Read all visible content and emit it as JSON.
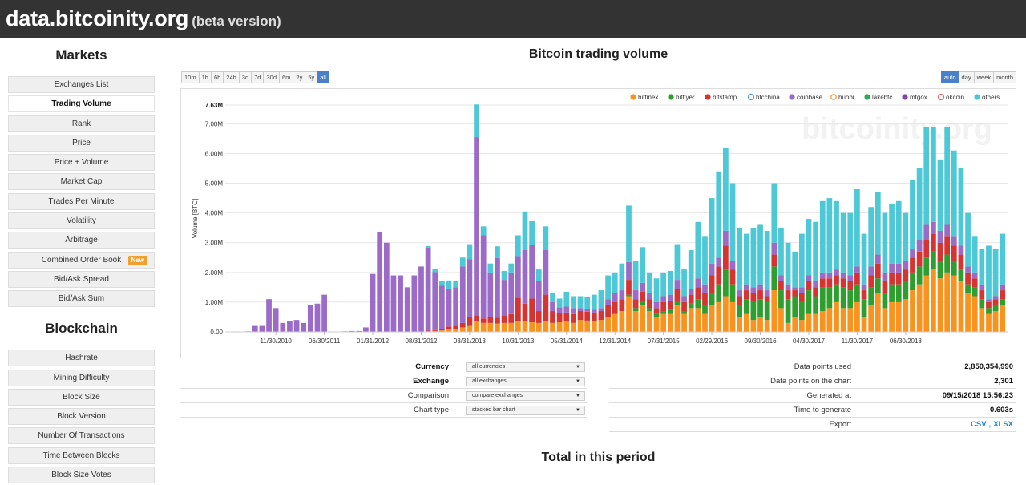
{
  "header": {
    "site": "data.bitcoinity.org",
    "beta": "(beta version)"
  },
  "sidebar": {
    "markets_title": "Markets",
    "markets": [
      {
        "label": "Exchanges List"
      },
      {
        "label": "Trading Volume",
        "active": true
      },
      {
        "label": "Rank"
      },
      {
        "label": "Price"
      },
      {
        "label": "Price + Volume"
      },
      {
        "label": "Market Cap"
      },
      {
        "label": "Trades Per Minute"
      },
      {
        "label": "Volatility"
      },
      {
        "label": "Arbitrage"
      },
      {
        "label": "Combined Order Book",
        "badge": "New"
      },
      {
        "label": "Bid/Ask Spread"
      },
      {
        "label": "Bid/Ask Sum"
      }
    ],
    "blockchain_title": "Blockchain",
    "blockchain": [
      {
        "label": "Hashrate"
      },
      {
        "label": "Mining Difficulty"
      },
      {
        "label": "Block Size"
      },
      {
        "label": "Block Version"
      },
      {
        "label": "Number Of Transactions"
      },
      {
        "label": "Time Between Blocks"
      },
      {
        "label": "Block Size Votes"
      }
    ]
  },
  "main": {
    "title": "Bitcoin trading volume",
    "time_buttons": [
      "10m",
      "1h",
      "6h",
      "24h",
      "3d",
      "7d",
      "30d",
      "6m",
      "2y",
      "5y",
      "all"
    ],
    "time_active": "all",
    "group_buttons": [
      "auto",
      "day",
      "week",
      "month"
    ],
    "group_active": "auto",
    "total_title": "Total in this period"
  },
  "controls": [
    {
      "label": "Currency",
      "value": "all currencies",
      "bold": true
    },
    {
      "label": "Exchange",
      "value": "all exchanges",
      "bold": true
    },
    {
      "label": "Comparison",
      "value": "compare exchanges",
      "bold": false
    },
    {
      "label": "Chart type",
      "value": "stacked bar chart",
      "bold": false
    }
  ],
  "stats": [
    {
      "label": "Data points used",
      "value": "2,850,354,990"
    },
    {
      "label": "Data points on the chart",
      "value": "2,301"
    },
    {
      "label": "Generated at",
      "value": "09/15/2018 15:56:23"
    },
    {
      "label": "Time to generate",
      "value": "0.603s"
    }
  ],
  "export": {
    "label": "Export",
    "csv": "CSV",
    "sep": ",",
    "xlsx": "XLSX"
  },
  "chart_data": {
    "type": "bar",
    "stacked": true,
    "ylabel": "Volume [BTC]",
    "ylim": [
      0,
      7.63
    ],
    "y_ticks": [
      "0.00",
      "1.00M",
      "2.00M",
      "3.00M",
      "4.00M",
      "5.00M",
      "6.00M",
      "7.00M"
    ],
    "y_max_label": "7.63M",
    "x_tick_labels": [
      "11/30/2010",
      "06/30/2011",
      "01/31/2012",
      "08/31/2012",
      "03/31/2013",
      "10/31/2013",
      "05/31/2014",
      "12/31/2014",
      "07/31/2015",
      "02/29/2016",
      "09/30/2016",
      "04/30/2017",
      "11/30/2017",
      "06/30/2018"
    ],
    "x_tick_positions": [
      6,
      13,
      20,
      27,
      34,
      41,
      48,
      55,
      62,
      69,
      76,
      83,
      90,
      97
    ],
    "watermark": "bitcoinity.org",
    "legend_position": "top-right",
    "series": [
      {
        "name": "bitfinex",
        "color": "#f7931e",
        "values": [
          0,
          0,
          0,
          0,
          0,
          0,
          0,
          0,
          0,
          0,
          0,
          0,
          0,
          0,
          0,
          0,
          0,
          0,
          0,
          0,
          0,
          0,
          0,
          0,
          0,
          0,
          0,
          0,
          0.02,
          0.03,
          0.05,
          0.08,
          0.1,
          0.15,
          0.2,
          0.35,
          0.3,
          0.3,
          0.28,
          0.3,
          0.3,
          0.35,
          0.35,
          0.32,
          0.3,
          0.35,
          0.3,
          0.32,
          0.35,
          0.3,
          0.4,
          0.38,
          0.35,
          0.4,
          0.5,
          0.6,
          0.7,
          1.2,
          0.7,
          0.9,
          0.7,
          0.5,
          0.6,
          0.6,
          0.9,
          0.6,
          0.8,
          0.8,
          0.6,
          0.9,
          1.0,
          1.2,
          1.0,
          0.5,
          0.6,
          0.4,
          0.5,
          0.4,
          1.4,
          0.8,
          0.3,
          0.5,
          0.4,
          0.6,
          0.6,
          0.7,
          0.8,
          1.0,
          0.8,
          0.8,
          1.0,
          0.5,
          0.9,
          1.3,
          0.8,
          1.0,
          1.0,
          1.1,
          1.4,
          1.6,
          1.9,
          2.1,
          1.8,
          2.0,
          1.9,
          1.7,
          1.3,
          1.2,
          0.8,
          0.6,
          0.7,
          0.9
        ]
      },
      {
        "name": "bitflyer",
        "color": "#2e9e2e",
        "values": [
          0,
          0,
          0,
          0,
          0,
          0,
          0,
          0,
          0,
          0,
          0,
          0,
          0,
          0,
          0,
          0,
          0,
          0,
          0,
          0,
          0,
          0,
          0,
          0,
          0,
          0,
          0,
          0,
          0,
          0,
          0,
          0,
          0,
          0,
          0,
          0,
          0,
          0,
          0,
          0,
          0,
          0,
          0,
          0,
          0,
          0,
          0,
          0,
          0,
          0,
          0,
          0,
          0,
          0,
          0,
          0,
          0,
          0.05,
          0.1,
          0.15,
          0.1,
          0.1,
          0.1,
          0.15,
          0.15,
          0.1,
          0.15,
          0.3,
          0.3,
          0.4,
          0.6,
          0.9,
          0.6,
          0.4,
          0.5,
          0.6,
          0.6,
          0.6,
          0.8,
          0.6,
          0.8,
          0.7,
          0.6,
          0.8,
          0.6,
          0.8,
          0.7,
          0.6,
          0.7,
          0.6,
          0.6,
          0.6,
          0.6,
          0.5,
          0.5,
          0.6,
          0.6,
          0.6,
          0.6,
          0.6,
          0.6,
          0.6,
          0.6,
          0.6,
          0.5,
          0.4,
          0.3,
          0.3,
          0.3,
          0.2,
          0.2,
          0.2
        ]
      },
      {
        "name": "bitstamp",
        "color": "#d63333",
        "values": [
          0,
          0,
          0,
          0,
          0,
          0,
          0,
          0,
          0,
          0,
          0,
          0,
          0,
          0,
          0,
          0,
          0,
          0,
          0,
          0,
          0,
          0,
          0,
          0,
          0,
          0,
          0,
          0,
          0.02,
          0.03,
          0.05,
          0.1,
          0.1,
          0.15,
          0.3,
          0.2,
          0.15,
          0.2,
          0.2,
          0.25,
          0.3,
          0.8,
          0.6,
          0.8,
          0.4,
          0.9,
          0.4,
          0.3,
          0.3,
          0.3,
          0.3,
          0.3,
          0.3,
          0.3,
          0.4,
          0.4,
          0.4,
          0.5,
          0.3,
          0.3,
          0.3,
          0.2,
          0.3,
          0.3,
          0.4,
          0.3,
          0.3,
          0.4,
          0.4,
          0.6,
          0.6,
          0.8,
          0.5,
          0.3,
          0.3,
          0.3,
          0.3,
          0.2,
          0.4,
          0.3,
          0.3,
          0.2,
          0.3,
          0.3,
          0.3,
          0.3,
          0.3,
          0.3,
          0.3,
          0.3,
          0.4,
          0.3,
          0.4,
          0.5,
          0.4,
          0.4,
          0.4,
          0.4,
          0.5,
          0.5,
          0.6,
          0.6,
          0.6,
          0.6,
          0.5,
          0.5,
          0.4,
          0.3,
          0.3,
          0.2,
          0.2,
          0.3
        ]
      },
      {
        "name": "btcchina",
        "color": "#1f77b4",
        "values": [
          0,
          0,
          0,
          0,
          0,
          0,
          0,
          0,
          0,
          0,
          0,
          0,
          0,
          0,
          0,
          0,
          0,
          0,
          0,
          0,
          0,
          0,
          0,
          0,
          0,
          0,
          0,
          0,
          0,
          0,
          0,
          0,
          0,
          0,
          0,
          0,
          0,
          0,
          0,
          0,
          0,
          0,
          0,
          0,
          0,
          0,
          0,
          0,
          0,
          0,
          0,
          0,
          0,
          0,
          0,
          0,
          0,
          0,
          0,
          0,
          0,
          0,
          0,
          0,
          0,
          0,
          0,
          0,
          0,
          0,
          0,
          0,
          0,
          0,
          0,
          0,
          0,
          0,
          0,
          0,
          0,
          0,
          0,
          0,
          0,
          0,
          0,
          0,
          0,
          0,
          0,
          0,
          0,
          0,
          0,
          0,
          0,
          0,
          0,
          0,
          0,
          0,
          0,
          0,
          0,
          0,
          0,
          0,
          0,
          0,
          0,
          0
        ]
      },
      {
        "name": "coinbase",
        "color": "#9b6bc7",
        "values": [
          0,
          0,
          0.02,
          0.2,
          0.2,
          1.1,
          0.8,
          0.3,
          0.35,
          0.4,
          0.3,
          0.9,
          0.95,
          1.25,
          0,
          0,
          0.02,
          0.03,
          0.03,
          0.15,
          1.95,
          3.35,
          3.0,
          1.9,
          1.9,
          1.5,
          1.9,
          2.2,
          2.8,
          1.95,
          1.45,
          1.25,
          1.3,
          1.9,
          1.95,
          6.0,
          2.8,
          1.5,
          2.0,
          1.2,
          1.4,
          1.4,
          1.8,
          1.8,
          1.0,
          1.5,
          0.3,
          0.2,
          0.2,
          0.2,
          0.1,
          0.1,
          0.1,
          0.1,
          0.2,
          0.3,
          0.3,
          0.6,
          0.3,
          0.3,
          0.2,
          0.2,
          0.2,
          0.2,
          0.3,
          0.2,
          0.2,
          0.3,
          0.3,
          0.4,
          0.3,
          0.5,
          0.3,
          0.2,
          0.2,
          0.2,
          0.2,
          0.2,
          0.4,
          0.2,
          0.2,
          0.1,
          0.2,
          0.2,
          0.2,
          0.2,
          0.2,
          0.2,
          0.2,
          0.2,
          0.2,
          0.2,
          0.3,
          0.3,
          0.3,
          0.3,
          0.3,
          0.3,
          0.3,
          0.4,
          0.5,
          0.4,
          0.4,
          0.4,
          0.3,
          0.3,
          0.2,
          0.2,
          0.2,
          0.1,
          0.1,
          0.2
        ]
      },
      {
        "name": "huobi",
        "color": "#ff9933",
        "values": [
          0,
          0,
          0,
          0,
          0,
          0,
          0,
          0,
          0,
          0,
          0,
          0,
          0,
          0,
          0,
          0,
          0,
          0,
          0,
          0,
          0,
          0,
          0,
          0,
          0,
          0,
          0,
          0,
          0,
          0,
          0,
          0,
          0,
          0,
          0,
          0,
          0,
          0,
          0,
          0,
          0,
          0,
          0,
          0,
          0,
          0,
          0,
          0,
          0,
          0,
          0,
          0,
          0,
          0,
          0,
          0,
          0,
          0,
          0,
          0,
          0,
          0,
          0,
          0,
          0,
          0,
          0,
          0,
          0,
          0,
          0,
          0,
          0,
          0,
          0,
          0,
          0,
          0,
          0,
          0,
          0,
          0,
          0,
          0,
          0,
          0,
          0,
          0,
          0,
          0,
          0,
          0,
          0,
          0,
          0,
          0,
          0,
          0,
          0,
          0,
          0,
          0,
          0,
          0,
          0,
          0,
          0,
          0,
          0,
          0,
          0,
          0
        ]
      },
      {
        "name": "lakebtc",
        "color": "#33aa55",
        "values": [
          0,
          0,
          0,
          0,
          0,
          0,
          0,
          0,
          0,
          0,
          0,
          0,
          0,
          0,
          0,
          0,
          0,
          0,
          0,
          0,
          0,
          0,
          0,
          0,
          0,
          0,
          0,
          0,
          0,
          0,
          0,
          0,
          0,
          0,
          0,
          0,
          0,
          0,
          0,
          0,
          0,
          0,
          0,
          0,
          0,
          0,
          0,
          0,
          0,
          0,
          0,
          0,
          0,
          0,
          0,
          0,
          0,
          0,
          0,
          0,
          0,
          0,
          0,
          0,
          0,
          0,
          0,
          0,
          0,
          0,
          0,
          0,
          0,
          0,
          0,
          0,
          0,
          0,
          0,
          0,
          0,
          0,
          0,
          0,
          0,
          0,
          0,
          0,
          0,
          0,
          0,
          0,
          0,
          0,
          0,
          0,
          0,
          0,
          0,
          0,
          0,
          0,
          0,
          0,
          0,
          0,
          0,
          0,
          0,
          0,
          0,
          0
        ]
      },
      {
        "name": "mtgox",
        "color": "#8844aa",
        "values": [
          0,
          0,
          0,
          0,
          0,
          0,
          0,
          0,
          0,
          0,
          0,
          0,
          0,
          0,
          0,
          0,
          0,
          0,
          0,
          0,
          0,
          0,
          0,
          0,
          0,
          0,
          0,
          0,
          0,
          0,
          0,
          0,
          0,
          0,
          0,
          0,
          0,
          0,
          0,
          0,
          0,
          0,
          0,
          0,
          0,
          0,
          0,
          0,
          0,
          0,
          0,
          0,
          0,
          0,
          0,
          0,
          0,
          0,
          0,
          0,
          0,
          0,
          0,
          0,
          0,
          0,
          0,
          0,
          0,
          0,
          0,
          0,
          0,
          0,
          0,
          0,
          0,
          0,
          0,
          0,
          0,
          0,
          0,
          0,
          0,
          0,
          0,
          0,
          0,
          0,
          0,
          0,
          0,
          0,
          0,
          0,
          0,
          0,
          0,
          0,
          0,
          0,
          0,
          0,
          0,
          0,
          0,
          0,
          0,
          0,
          0,
          0
        ]
      },
      {
        "name": "okcoin",
        "color": "#e03030",
        "values": [
          0,
          0,
          0,
          0,
          0,
          0,
          0,
          0,
          0,
          0,
          0,
          0,
          0,
          0,
          0,
          0,
          0,
          0,
          0,
          0,
          0,
          0,
          0,
          0,
          0,
          0,
          0,
          0,
          0,
          0,
          0,
          0,
          0,
          0,
          0,
          0,
          0,
          0,
          0,
          0,
          0,
          0,
          0,
          0,
          0,
          0,
          0,
          0,
          0,
          0,
          0,
          0,
          0,
          0,
          0,
          0,
          0,
          0,
          0,
          0,
          0,
          0,
          0,
          0,
          0,
          0,
          0,
          0,
          0,
          0,
          0,
          0,
          0,
          0,
          0,
          0,
          0,
          0,
          0,
          0,
          0,
          0,
          0,
          0,
          0,
          0,
          0,
          0,
          0,
          0,
          0,
          0,
          0,
          0,
          0,
          0,
          0,
          0,
          0,
          0,
          0,
          0,
          0,
          0,
          0,
          0,
          0,
          0,
          0,
          0,
          0,
          0
        ]
      },
      {
        "name": "others",
        "color": "#4dc8d6",
        "values": [
          0,
          0,
          0,
          0,
          0,
          0,
          0,
          0,
          0,
          0,
          0,
          0,
          0,
          0,
          0,
          0,
          0,
          0,
          0,
          0,
          0,
          0,
          0,
          0,
          0,
          0,
          0,
          0,
          0.05,
          0.1,
          0.15,
          0.3,
          0.2,
          0.3,
          0.5,
          1.1,
          0.3,
          0.3,
          0.4,
          0.3,
          0.3,
          0.7,
          1.3,
          0.8,
          0.4,
          0.8,
          0.3,
          0.3,
          0.5,
          0.4,
          0.4,
          0.4,
          0.5,
          0.6,
          0.8,
          0.7,
          0.9,
          1.9,
          1.0,
          1.2,
          0.7,
          0.8,
          0.8,
          0.8,
          1.2,
          0.9,
          1.3,
          1.9,
          1.6,
          2.2,
          2.9,
          2.8,
          2.6,
          2.1,
          1.7,
          2.0,
          2.0,
          2.0,
          2.0,
          1.6,
          1.4,
          1.2,
          1.8,
          1.9,
          2.0,
          2.4,
          2.5,
          2.3,
          2.0,
          2.1,
          2.6,
          1.7,
          2.0,
          2.1,
          2.0,
          2.0,
          2.1,
          1.6,
          2.3,
          2.4,
          3.3,
          3.2,
          2.4,
          3.3,
          2.9,
          2.6,
          1.8,
          1.2,
          1.2,
          1.8,
          1.6,
          1.7
        ]
      }
    ]
  }
}
